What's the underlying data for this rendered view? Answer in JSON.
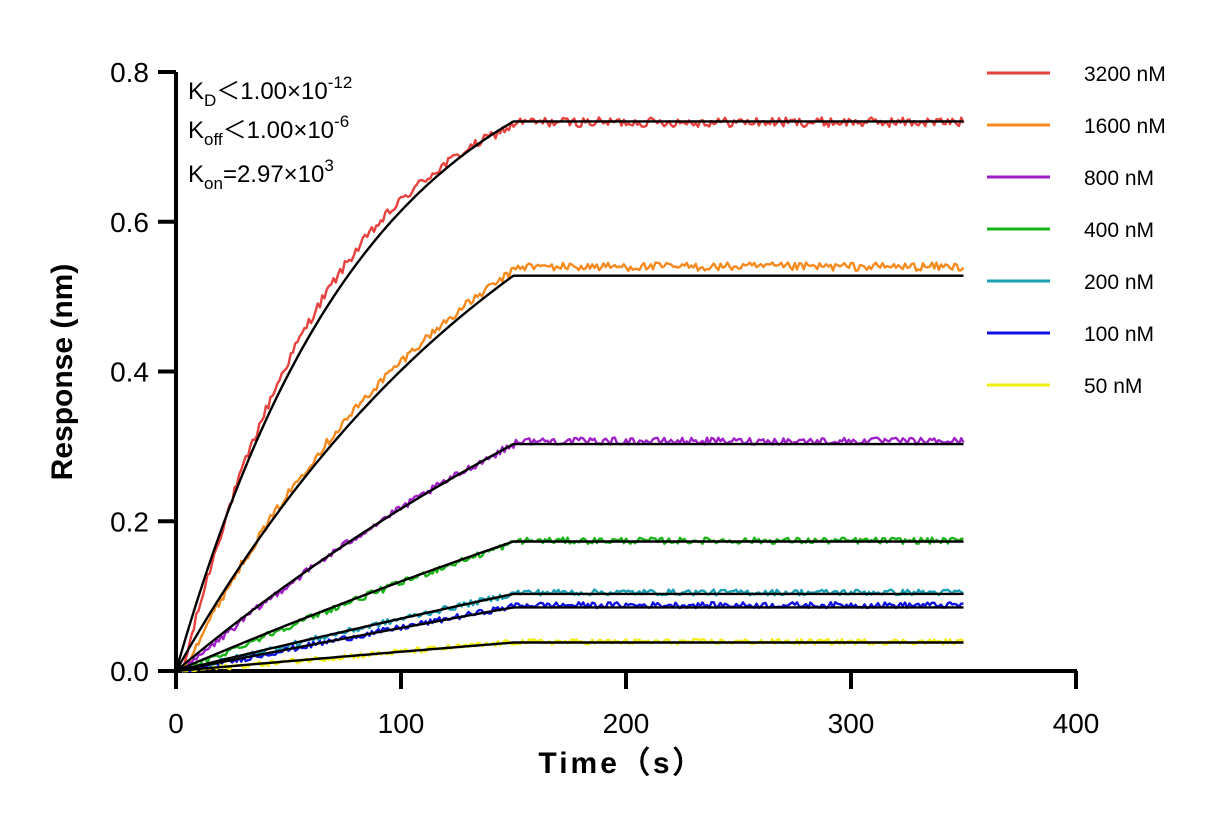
{
  "chart_data": {
    "type": "line",
    "title": "",
    "xlabel": "Time（s）",
    "ylabel": "Response (nm)",
    "xlim": [
      0,
      400
    ],
    "ylim": [
      0,
      0.8
    ],
    "x_ticks": [
      "0",
      "100",
      "200",
      "300",
      "400"
    ],
    "y_ticks": [
      "0.0",
      "0.2",
      "0.4",
      "0.6",
      "0.8"
    ],
    "legend_position": "right",
    "association_end_s": 150,
    "run_end_s": 350,
    "series": [
      {
        "name": "3200 nM",
        "color": "#e8423f",
        "plateau": 0.733,
        "fit_plateau": 0.734
      },
      {
        "name": "1600 nM",
        "color": "#f58a1f",
        "plateau": 0.54,
        "fit_plateau": 0.528
      },
      {
        "name": "800 nM",
        "color": "#a020c8",
        "plateau": 0.307,
        "fit_plateau": 0.303
      },
      {
        "name": "400 nM",
        "color": "#18b418",
        "plateau": 0.174,
        "fit_plateau": 0.173
      },
      {
        "name": "200 nM",
        "color": "#1a9fb5",
        "plateau": 0.105,
        "fit_plateau": 0.103
      },
      {
        "name": "100 nM",
        "color": "#1010e0",
        "plateau": 0.088,
        "fit_plateau": 0.085
      },
      {
        "name": "50 nM",
        "color": "#f2ee10",
        "plateau": 0.039,
        "fit_plateau": 0.038
      }
    ],
    "fit_color": "#000000",
    "kinetics": {
      "kd": {
        "label": "K",
        "sub": "D",
        "relation": "＜",
        "value": "1.00×10",
        "exp": "-12"
      },
      "koff": {
        "label": "K",
        "sub": "off",
        "relation": "＜",
        "value": "1.00×10",
        "exp": "-6"
      },
      "kon": {
        "label": "K",
        "sub": "on",
        "relation": "=",
        "value": "2.97×10",
        "exp": "3"
      }
    }
  }
}
